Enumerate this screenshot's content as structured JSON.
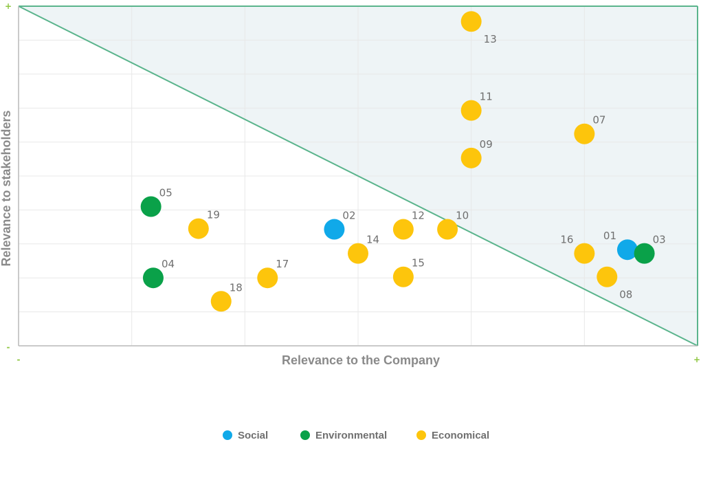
{
  "chart_data": {
    "type": "scatter",
    "title": "",
    "xlabel": "Relevance to the Company",
    "ylabel": "Relevance to stakeholders",
    "xlim": [
      0,
      6
    ],
    "ylim": [
      0,
      10
    ],
    "x_min_label": "-",
    "x_max_label": "+",
    "y_min_label": "-",
    "y_max_label": "+",
    "grid": true,
    "legend_position": "bottom",
    "highlight_region": "above-diagonal",
    "colors": {
      "Social": "#10a9e9",
      "Environmental": "#0aa149",
      "Economical": "#fdc50c",
      "diagonal": "#5ab48c",
      "region": "#eef4f6",
      "axis_marks": "#8dc63f"
    },
    "series": [
      {
        "name": "Social",
        "points": [
          {
            "label": "01",
            "x": 5.38,
            "y": 2.83
          },
          {
            "label": "02",
            "x": 2.79,
            "y": 3.43
          }
        ]
      },
      {
        "name": "Environmental",
        "points": [
          {
            "label": "03",
            "x": 5.53,
            "y": 2.72
          },
          {
            "label": "04",
            "x": 1.19,
            "y": 2.0
          },
          {
            "label": "05",
            "x": 1.17,
            "y": 4.1
          }
        ]
      },
      {
        "name": "Economical",
        "points": [
          {
            "label": "07",
            "x": 5.0,
            "y": 6.24
          },
          {
            "label": "08",
            "x": 5.2,
            "y": 2.03
          },
          {
            "label": "09",
            "x": 4.0,
            "y": 5.53
          },
          {
            "label": "10",
            "x": 3.79,
            "y": 3.43
          },
          {
            "label": "11",
            "x": 4.0,
            "y": 6.93
          },
          {
            "label": "12",
            "x": 3.4,
            "y": 3.43
          },
          {
            "label": "13",
            "x": 4.0,
            "y": 9.55
          },
          {
            "label": "14",
            "x": 3.0,
            "y": 2.72
          },
          {
            "label": "15",
            "x": 3.4,
            "y": 2.03
          },
          {
            "label": "16",
            "x": 5.0,
            "y": 2.72
          },
          {
            "label": "17",
            "x": 2.2,
            "y": 2.0
          },
          {
            "label": "18",
            "x": 1.79,
            "y": 1.31
          },
          {
            "label": "19",
            "x": 1.59,
            "y": 3.45
          }
        ]
      }
    ]
  }
}
